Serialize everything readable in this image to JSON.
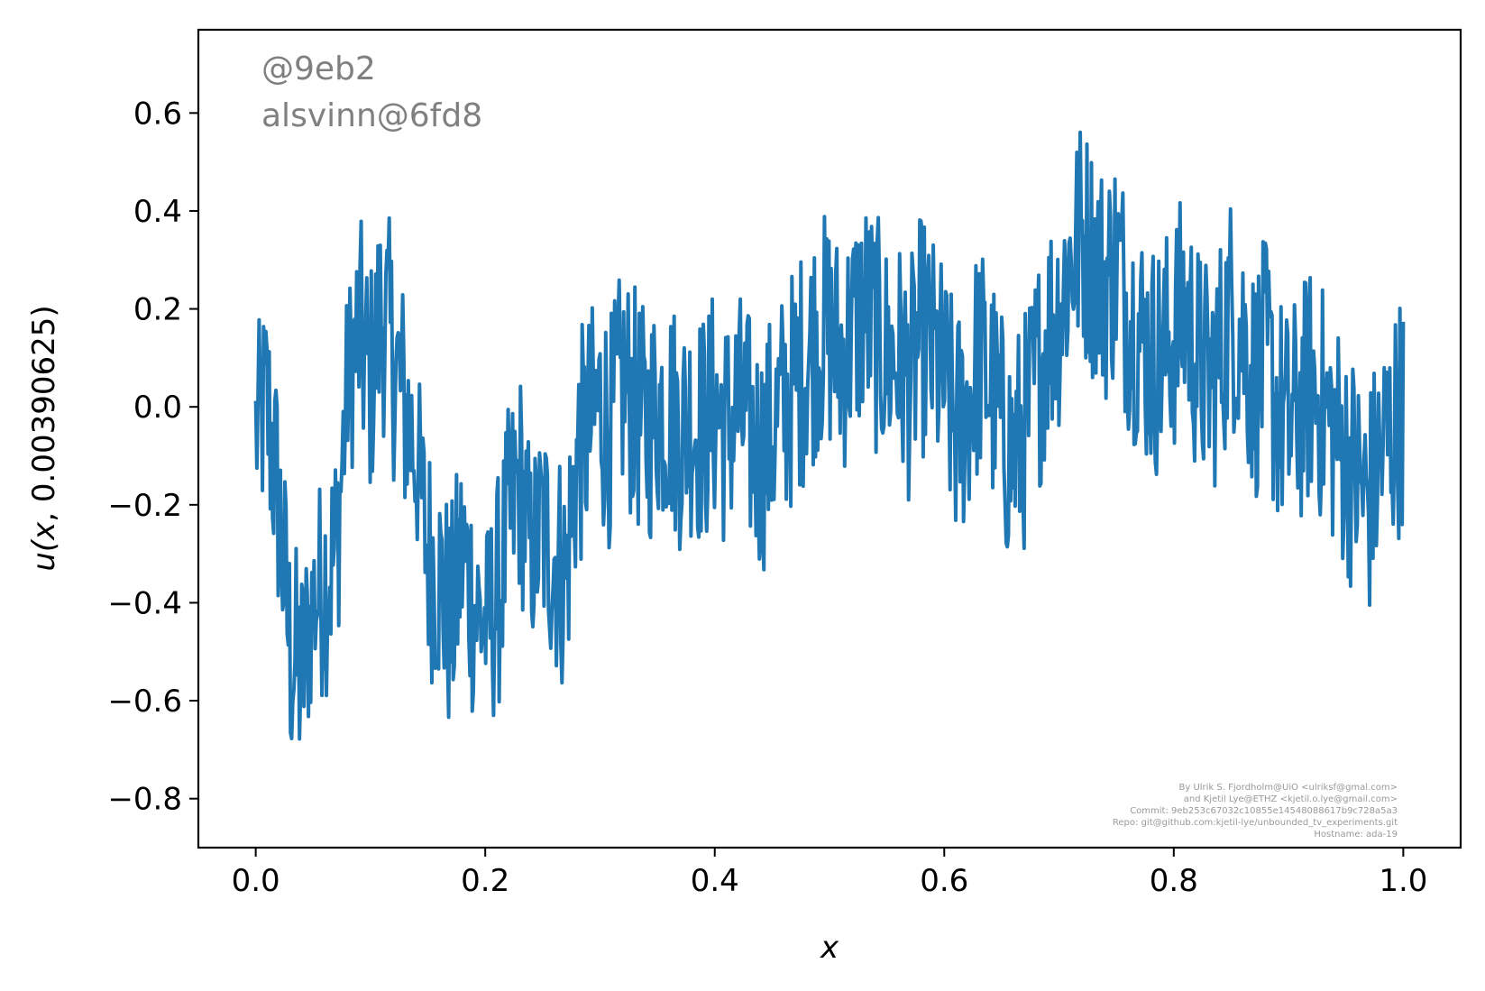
{
  "chart_data": {
    "type": "line",
    "title": "",
    "xlabel": "x",
    "ylabel_prefix": "u(",
    "ylabel_var": "x",
    "ylabel_suffix": ", 0.00390625)",
    "xlim": [
      -0.05,
      1.05
    ],
    "ylim": [
      -0.9,
      0.77
    ],
    "xticks": [
      0.0,
      0.2,
      0.4,
      0.6,
      0.8,
      1.0
    ],
    "xtick_labels": [
      "0.0",
      "0.2",
      "0.4",
      "0.6",
      "0.8",
      "1.0"
    ],
    "yticks": [
      -0.8,
      -0.6,
      -0.4,
      -0.2,
      0.0,
      0.2,
      0.4,
      0.6
    ],
    "ytick_labels": [
      "−0.8",
      "−0.6",
      "−0.4",
      "−0.2",
      "0.0",
      "0.2",
      "0.4",
      "0.6"
    ],
    "grid": false,
    "legend": "none",
    "series_color": "#1f77b4",
    "series": [
      {
        "x": [
          0.0,
          0.01,
          0.02,
          0.03,
          0.04,
          0.05,
          0.06,
          0.07,
          0.08,
          0.09,
          0.1,
          0.11,
          0.12,
          0.13,
          0.14,
          0.15,
          0.16,
          0.17,
          0.18,
          0.19,
          0.2,
          0.21,
          0.22,
          0.23,
          0.24,
          0.25,
          0.26,
          0.27,
          0.28,
          0.29,
          0.3,
          0.31,
          0.32,
          0.33,
          0.34,
          0.35,
          0.36,
          0.37,
          0.38,
          0.39,
          0.4,
          0.41,
          0.42,
          0.43,
          0.44,
          0.45,
          0.46,
          0.47,
          0.48,
          0.49,
          0.5,
          0.51,
          0.52,
          0.53,
          0.54,
          0.55,
          0.56,
          0.57,
          0.58,
          0.59,
          0.6,
          0.61,
          0.62,
          0.63,
          0.64,
          0.65,
          0.66,
          0.67,
          0.68,
          0.69,
          0.7,
          0.71,
          0.72,
          0.73,
          0.74,
          0.75,
          0.76,
          0.77,
          0.78,
          0.79,
          0.8,
          0.81,
          0.82,
          0.83,
          0.84,
          0.85,
          0.86,
          0.87,
          0.88,
          0.89,
          0.9,
          0.91,
          0.92,
          0.93,
          0.94,
          0.95,
          0.96,
          0.97,
          0.98,
          0.99,
          1.0
        ],
        "y": [
          -0.05,
          0.0,
          -0.2,
          -0.5,
          -0.55,
          -0.4,
          -0.35,
          -0.3,
          0.05,
          0.15,
          0.05,
          0.2,
          0.1,
          0.0,
          -0.1,
          -0.3,
          -0.35,
          -0.45,
          -0.3,
          -0.4,
          -0.45,
          -0.4,
          -0.25,
          -0.15,
          -0.3,
          -0.25,
          -0.3,
          -0.35,
          -0.1,
          -0.05,
          0.0,
          -0.05,
          0.05,
          0.0,
          -0.05,
          0.0,
          0.0,
          -0.05,
          -0.02,
          -0.05,
          0.0,
          -0.05,
          0.0,
          -0.05,
          -0.1,
          -0.05,
          0.0,
          0.05,
          0.1,
          0.15,
          0.15,
          0.1,
          0.15,
          0.2,
          0.15,
          0.1,
          0.1,
          0.05,
          0.15,
          0.1,
          0.05,
          -0.05,
          0.0,
          0.1,
          0.05,
          -0.05,
          -0.1,
          -0.05,
          0.05,
          0.15,
          0.2,
          0.3,
          0.35,
          0.3,
          0.25,
          0.3,
          0.2,
          0.15,
          0.1,
          0.1,
          0.15,
          0.2,
          0.1,
          0.05,
          0.1,
          0.2,
          0.15,
          0.05,
          0.1,
          0.0,
          -0.05,
          0.0,
          0.05,
          0.0,
          -0.05,
          -0.1,
          -0.15,
          -0.2,
          -0.1,
          -0.05,
          0.0
        ],
        "band": [
          0.2,
          0.25,
          0.25,
          0.25,
          0.25,
          0.2,
          0.25,
          0.25,
          0.2,
          0.25,
          0.25,
          0.25,
          0.25,
          0.25,
          0.2,
          0.25,
          0.25,
          0.25,
          0.25,
          0.25,
          0.2,
          0.25,
          0.25,
          0.25,
          0.2,
          0.25,
          0.25,
          0.25,
          0.25,
          0.25,
          0.25,
          0.25,
          0.25,
          0.25,
          0.25,
          0.25,
          0.25,
          0.25,
          0.25,
          0.25,
          0.25,
          0.25,
          0.25,
          0.25,
          0.25,
          0.25,
          0.25,
          0.25,
          0.25,
          0.25,
          0.25,
          0.25,
          0.25,
          0.25,
          0.25,
          0.25,
          0.25,
          0.25,
          0.25,
          0.25,
          0.25,
          0.25,
          0.25,
          0.25,
          0.25,
          0.25,
          0.25,
          0.25,
          0.25,
          0.25,
          0.25,
          0.25,
          0.25,
          0.25,
          0.25,
          0.25,
          0.25,
          0.25,
          0.25,
          0.25,
          0.25,
          0.25,
          0.25,
          0.25,
          0.25,
          0.25,
          0.25,
          0.25,
          0.25,
          0.25,
          0.25,
          0.25,
          0.25,
          0.25,
          0.25,
          0.25,
          0.25,
          0.25,
          0.25,
          0.25,
          0.25
        ]
      }
    ]
  },
  "annotations": {
    "watermark_line1": "@9eb2",
    "watermark_line2": "alsvinn@6fd8",
    "credits": [
      "By Ulrik S. Fjordholm@UiO <ulriksf@gmal.com>",
      "and Kjetil Lye@ETHZ <kjetil.o.lye@gmail.com>",
      "Commit: 9eb253c67032c10855e14548088617b9c728a5a3",
      "Repo: git@github.com:kjetil-lye/unbounded_tv_experiments.git",
      "Hostname: ada-19"
    ]
  }
}
